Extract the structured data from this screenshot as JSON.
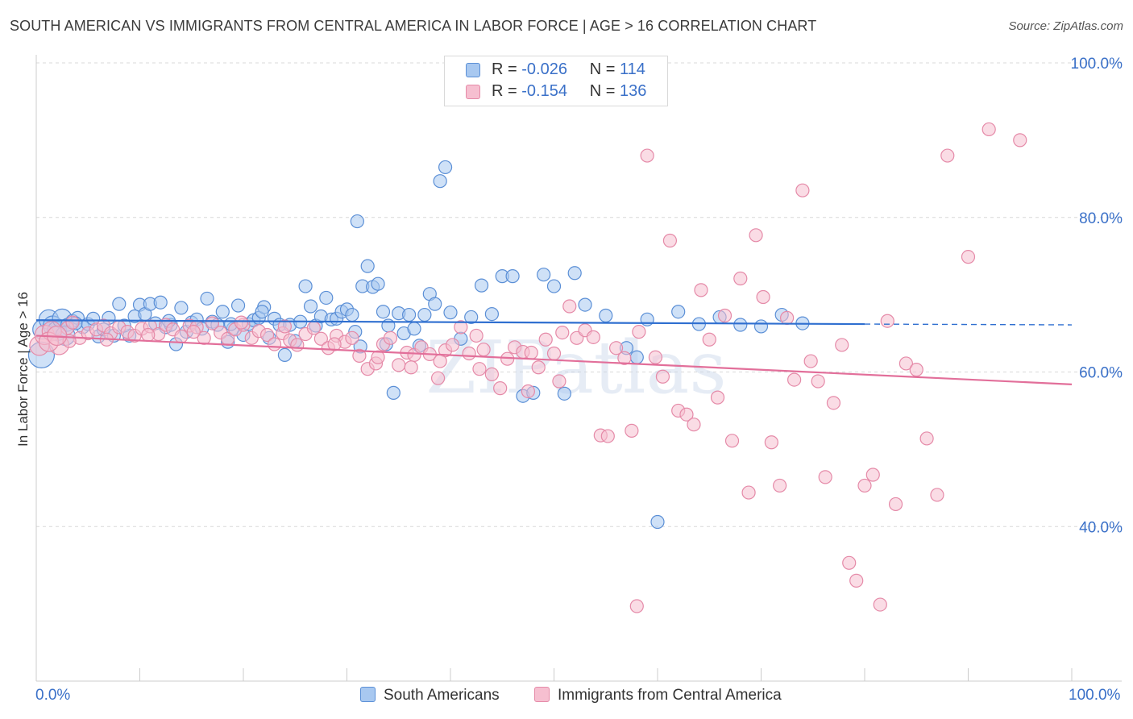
{
  "title": "SOUTH AMERICAN VS IMMIGRANTS FROM CENTRAL AMERICA IN LABOR FORCE | AGE > 16 CORRELATION CHART",
  "source": "Source: ZipAtlas.com",
  "watermark": "ZIPatlas",
  "colors": {
    "blue_fill": "#a8c8f0",
    "blue_stroke": "#5b8fd6",
    "blue_line": "#2f6fd0",
    "pink_fill": "#f6bfd0",
    "pink_stroke": "#e58aa8",
    "pink_line": "#e26f9a",
    "tick_label": "#3a70c8",
    "grid": "#d9d9d9"
  },
  "legend": {
    "r_label": "R =",
    "n_label": "N =",
    "series": [
      {
        "r": "-0.026",
        "n": "114"
      },
      {
        "r": "-0.154",
        "n": "136"
      }
    ]
  },
  "bottom_legend": [
    "South Americans",
    "Immigrants from Central America"
  ],
  "chart_data": {
    "type": "scatter",
    "xlabel": "",
    "ylabel": "In Labor Force | Age > 16",
    "xlim": [
      0,
      100
    ],
    "ylim": [
      20,
      100
    ],
    "x_tick_labels": [
      "0.0%",
      "100.0%"
    ],
    "y_ticks": [
      40,
      60,
      80,
      100
    ],
    "y_tick_labels": [
      "40.0%",
      "60.0%",
      "80.0%",
      "100.0%"
    ],
    "grid": true,
    "series": [
      {
        "name": "South Americans",
        "r": -0.026,
        "n": 114,
        "trend": {
          "x_start": 0,
          "y_start": 66.7,
          "x_solid_end": 80,
          "y_solid_end": 66.2,
          "x_end": 100,
          "y_end": 66.1
        },
        "points": [
          [
            0.5,
            62.2
          ],
          [
            0.6,
            65.5
          ],
          [
            1.2,
            66.8
          ],
          [
            1.6,
            66.0
          ],
          [
            2.0,
            65.3
          ],
          [
            2.5,
            66.9
          ],
          [
            3.0,
            66.1
          ],
          [
            3.5,
            66.6
          ],
          [
            4.0,
            67.0
          ],
          [
            4.5,
            65.8
          ],
          [
            5.0,
            66.2
          ],
          [
            6.0,
            64.6
          ],
          [
            7.0,
            67.0
          ],
          [
            7.5,
            64.7
          ],
          [
            6.5,
            65.5
          ],
          [
            8.0,
            68.8
          ],
          [
            9.0,
            64.7
          ],
          [
            9.5,
            67.2
          ],
          [
            10.0,
            68.7
          ],
          [
            10.5,
            67.5
          ],
          [
            11.0,
            68.8
          ],
          [
            11.5,
            66.3
          ],
          [
            12.0,
            69.0
          ],
          [
            12.5,
            65.8
          ],
          [
            13.0,
            66.1
          ],
          [
            13.5,
            63.6
          ],
          [
            14.0,
            68.3
          ],
          [
            14.5,
            65.2
          ],
          [
            15.0,
            66.4
          ],
          [
            15.5,
            66.8
          ],
          [
            16.0,
            65.6
          ],
          [
            16.5,
            69.5
          ],
          [
            17.0,
            66.5
          ],
          [
            17.5,
            66.1
          ],
          [
            18.0,
            67.8
          ],
          [
            18.5,
            63.9
          ],
          [
            19.0,
            65.6
          ],
          [
            19.5,
            68.6
          ],
          [
            20.0,
            64.8
          ],
          [
            20.5,
            66.2
          ],
          [
            21.0,
            66.7
          ],
          [
            21.5,
            67.0
          ],
          [
            22.0,
            68.4
          ],
          [
            22.5,
            64.4
          ],
          [
            23.0,
            66.9
          ],
          [
            23.5,
            66.1
          ],
          [
            24.0,
            62.2
          ],
          [
            24.5,
            66.1
          ],
          [
            25.0,
            64.0
          ],
          [
            25.5,
            66.5
          ],
          [
            26.0,
            71.1
          ],
          [
            26.5,
            68.5
          ],
          [
            27.0,
            66.0
          ],
          [
            27.5,
            67.2
          ],
          [
            28.0,
            69.6
          ],
          [
            28.5,
            66.8
          ],
          [
            29.0,
            66.9
          ],
          [
            29.5,
            67.8
          ],
          [
            30.0,
            68.1
          ],
          [
            30.5,
            67.4
          ],
          [
            31.0,
            79.5
          ],
          [
            31.5,
            71.1
          ],
          [
            32.0,
            73.7
          ],
          [
            32.5,
            71.0
          ],
          [
            33.0,
            71.4
          ],
          [
            33.5,
            67.8
          ],
          [
            34.0,
            66.0
          ],
          [
            34.5,
            57.3
          ],
          [
            35.0,
            67.6
          ],
          [
            35.5,
            65.0
          ],
          [
            36.0,
            67.4
          ],
          [
            36.5,
            65.6
          ],
          [
            37.0,
            63.4
          ],
          [
            37.5,
            67.4
          ],
          [
            38.0,
            70.1
          ],
          [
            38.5,
            68.8
          ],
          [
            39.0,
            84.7
          ],
          [
            39.5,
            86.5
          ],
          [
            40.0,
            67.7
          ],
          [
            41.0,
            64.3
          ],
          [
            42.0,
            67.1
          ],
          [
            43.0,
            71.2
          ],
          [
            44.0,
            67.5
          ],
          [
            45.0,
            72.4
          ],
          [
            46.0,
            72.4
          ],
          [
            47.0,
            56.9
          ],
          [
            48.0,
            57.3
          ],
          [
            49.0,
            72.6
          ],
          [
            50.0,
            71.1
          ],
          [
            51.0,
            57.2
          ],
          [
            52.0,
            72.8
          ],
          [
            53.0,
            68.7
          ],
          [
            55.0,
            67.3
          ],
          [
            57.0,
            63.1
          ],
          [
            59.0,
            66.8
          ],
          [
            62.0,
            67.8
          ],
          [
            64.0,
            66.2
          ],
          [
            66.0,
            67.1
          ],
          [
            68.0,
            66.1
          ],
          [
            70.0,
            65.9
          ],
          [
            72.0,
            67.4
          ],
          [
            74.0,
            66.3
          ],
          [
            58.0,
            61.9
          ],
          [
            2.8,
            64.7
          ],
          [
            3.8,
            66.3
          ],
          [
            5.5,
            66.9
          ],
          [
            8.5,
            66.0
          ],
          [
            30.8,
            65.2
          ],
          [
            33.8,
            63.6
          ],
          [
            21.8,
            67.8
          ],
          [
            18.8,
            66.2
          ],
          [
            12.8,
            66.6
          ],
          [
            60.0,
            40.6
          ],
          [
            31.3,
            63.3
          ]
        ]
      },
      {
        "name": "Immigrants from Central America",
        "r": -0.154,
        "n": 136,
        "trend": {
          "x_start": 0,
          "y_start": 64.7,
          "x_end": 100,
          "y_end": 58.4
        },
        "points": [
          [
            0.3,
            63.4
          ],
          [
            0.8,
            64.8
          ],
          [
            1.5,
            65.3
          ],
          [
            2.2,
            63.5
          ],
          [
            3.0,
            65.7
          ],
          [
            3.5,
            66.4
          ],
          [
            4.2,
            64.4
          ],
          [
            5.0,
            65.0
          ],
          [
            5.8,
            65.5
          ],
          [
            6.5,
            66.0
          ],
          [
            7.2,
            65.0
          ],
          [
            8.0,
            65.8
          ],
          [
            8.8,
            65.2
          ],
          [
            9.5,
            64.7
          ],
          [
            10.2,
            65.6
          ],
          [
            11.0,
            65.9
          ],
          [
            11.8,
            64.9
          ],
          [
            12.5,
            66.1
          ],
          [
            13.2,
            65.5
          ],
          [
            14.0,
            64.6
          ],
          [
            14.8,
            66.0
          ],
          [
            15.5,
            65.8
          ],
          [
            16.2,
            64.4
          ],
          [
            17.0,
            66.3
          ],
          [
            17.8,
            65.1
          ],
          [
            18.5,
            64.3
          ],
          [
            19.2,
            65.5
          ],
          [
            20.0,
            66.1
          ],
          [
            20.8,
            64.4
          ],
          [
            21.5,
            65.3
          ],
          [
            22.3,
            64.8
          ],
          [
            23.0,
            63.6
          ],
          [
            23.8,
            65.0
          ],
          [
            24.5,
            64.1
          ],
          [
            25.2,
            63.5
          ],
          [
            26.0,
            64.9
          ],
          [
            26.8,
            65.7
          ],
          [
            27.5,
            64.3
          ],
          [
            28.2,
            63.1
          ],
          [
            29.0,
            64.7
          ],
          [
            29.8,
            63.9
          ],
          [
            30.5,
            64.4
          ],
          [
            31.2,
            62.1
          ],
          [
            32.0,
            60.4
          ],
          [
            32.8,
            61.1
          ],
          [
            33.5,
            63.6
          ],
          [
            34.2,
            64.4
          ],
          [
            35.0,
            60.9
          ],
          [
            35.8,
            62.5
          ],
          [
            36.5,
            62.2
          ],
          [
            37.2,
            63.2
          ],
          [
            38.0,
            62.3
          ],
          [
            38.8,
            59.2
          ],
          [
            39.5,
            62.8
          ],
          [
            40.2,
            63.5
          ],
          [
            41.0,
            65.8
          ],
          [
            41.8,
            62.4
          ],
          [
            42.5,
            64.7
          ],
          [
            43.2,
            62.9
          ],
          [
            44.0,
            59.7
          ],
          [
            44.8,
            57.9
          ],
          [
            45.5,
            61.7
          ],
          [
            46.2,
            63.2
          ],
          [
            47.0,
            62.6
          ],
          [
            47.8,
            62.5
          ],
          [
            48.5,
            60.6
          ],
          [
            49.2,
            64.2
          ],
          [
            50.0,
            62.4
          ],
          [
            50.8,
            65.1
          ],
          [
            51.5,
            68.5
          ],
          [
            52.2,
            64.4
          ],
          [
            53.0,
            65.4
          ],
          [
            53.8,
            64.5
          ],
          [
            54.5,
            51.8
          ],
          [
            55.2,
            51.7
          ],
          [
            56.0,
            63.1
          ],
          [
            56.8,
            61.8
          ],
          [
            57.5,
            52.4
          ],
          [
            58.2,
            65.2
          ],
          [
            59.0,
            88.0
          ],
          [
            59.8,
            61.9
          ],
          [
            60.5,
            59.4
          ],
          [
            61.2,
            77.0
          ],
          [
            62.0,
            55.0
          ],
          [
            62.8,
            54.5
          ],
          [
            63.5,
            53.2
          ],
          [
            64.2,
            70.6
          ],
          [
            65.0,
            64.2
          ],
          [
            65.8,
            56.7
          ],
          [
            66.5,
            67.3
          ],
          [
            67.2,
            51.1
          ],
          [
            68.0,
            72.1
          ],
          [
            68.8,
            44.4
          ],
          [
            69.5,
            77.7
          ],
          [
            70.2,
            69.7
          ],
          [
            71.0,
            50.9
          ],
          [
            71.8,
            45.3
          ],
          [
            72.5,
            67.0
          ],
          [
            73.2,
            59.0
          ],
          [
            74.0,
            83.5
          ],
          [
            74.8,
            61.4
          ],
          [
            75.5,
            58.8
          ],
          [
            76.2,
            46.4
          ],
          [
            77.0,
            56.0
          ],
          [
            77.8,
            63.5
          ],
          [
            78.5,
            35.3
          ],
          [
            79.2,
            33.0
          ],
          [
            80.0,
            45.3
          ],
          [
            80.8,
            46.7
          ],
          [
            81.5,
            29.9
          ],
          [
            82.2,
            66.6
          ],
          [
            83.0,
            42.9
          ],
          [
            84.0,
            61.1
          ],
          [
            85.0,
            60.3
          ],
          [
            86.0,
            51.4
          ],
          [
            87.0,
            44.1
          ],
          [
            88.0,
            88.0
          ],
          [
            90.0,
            74.9
          ],
          [
            92.0,
            91.4
          ],
          [
            95.0,
            90.0
          ],
          [
            58.0,
            29.7
          ],
          [
            50.5,
            58.8
          ],
          [
            47.5,
            57.5
          ],
          [
            42.8,
            60.4
          ],
          [
            39.0,
            61.4
          ],
          [
            36.2,
            60.6
          ],
          [
            33.0,
            61.9
          ],
          [
            28.8,
            63.6
          ],
          [
            24.0,
            65.9
          ],
          [
            19.8,
            66.4
          ],
          [
            15.2,
            65.2
          ],
          [
            10.8,
            64.8
          ],
          [
            6.8,
            64.2
          ],
          [
            3.2,
            64.0
          ],
          [
            1.2,
            63.9
          ],
          [
            2.0,
            64.7
          ]
        ]
      }
    ]
  }
}
